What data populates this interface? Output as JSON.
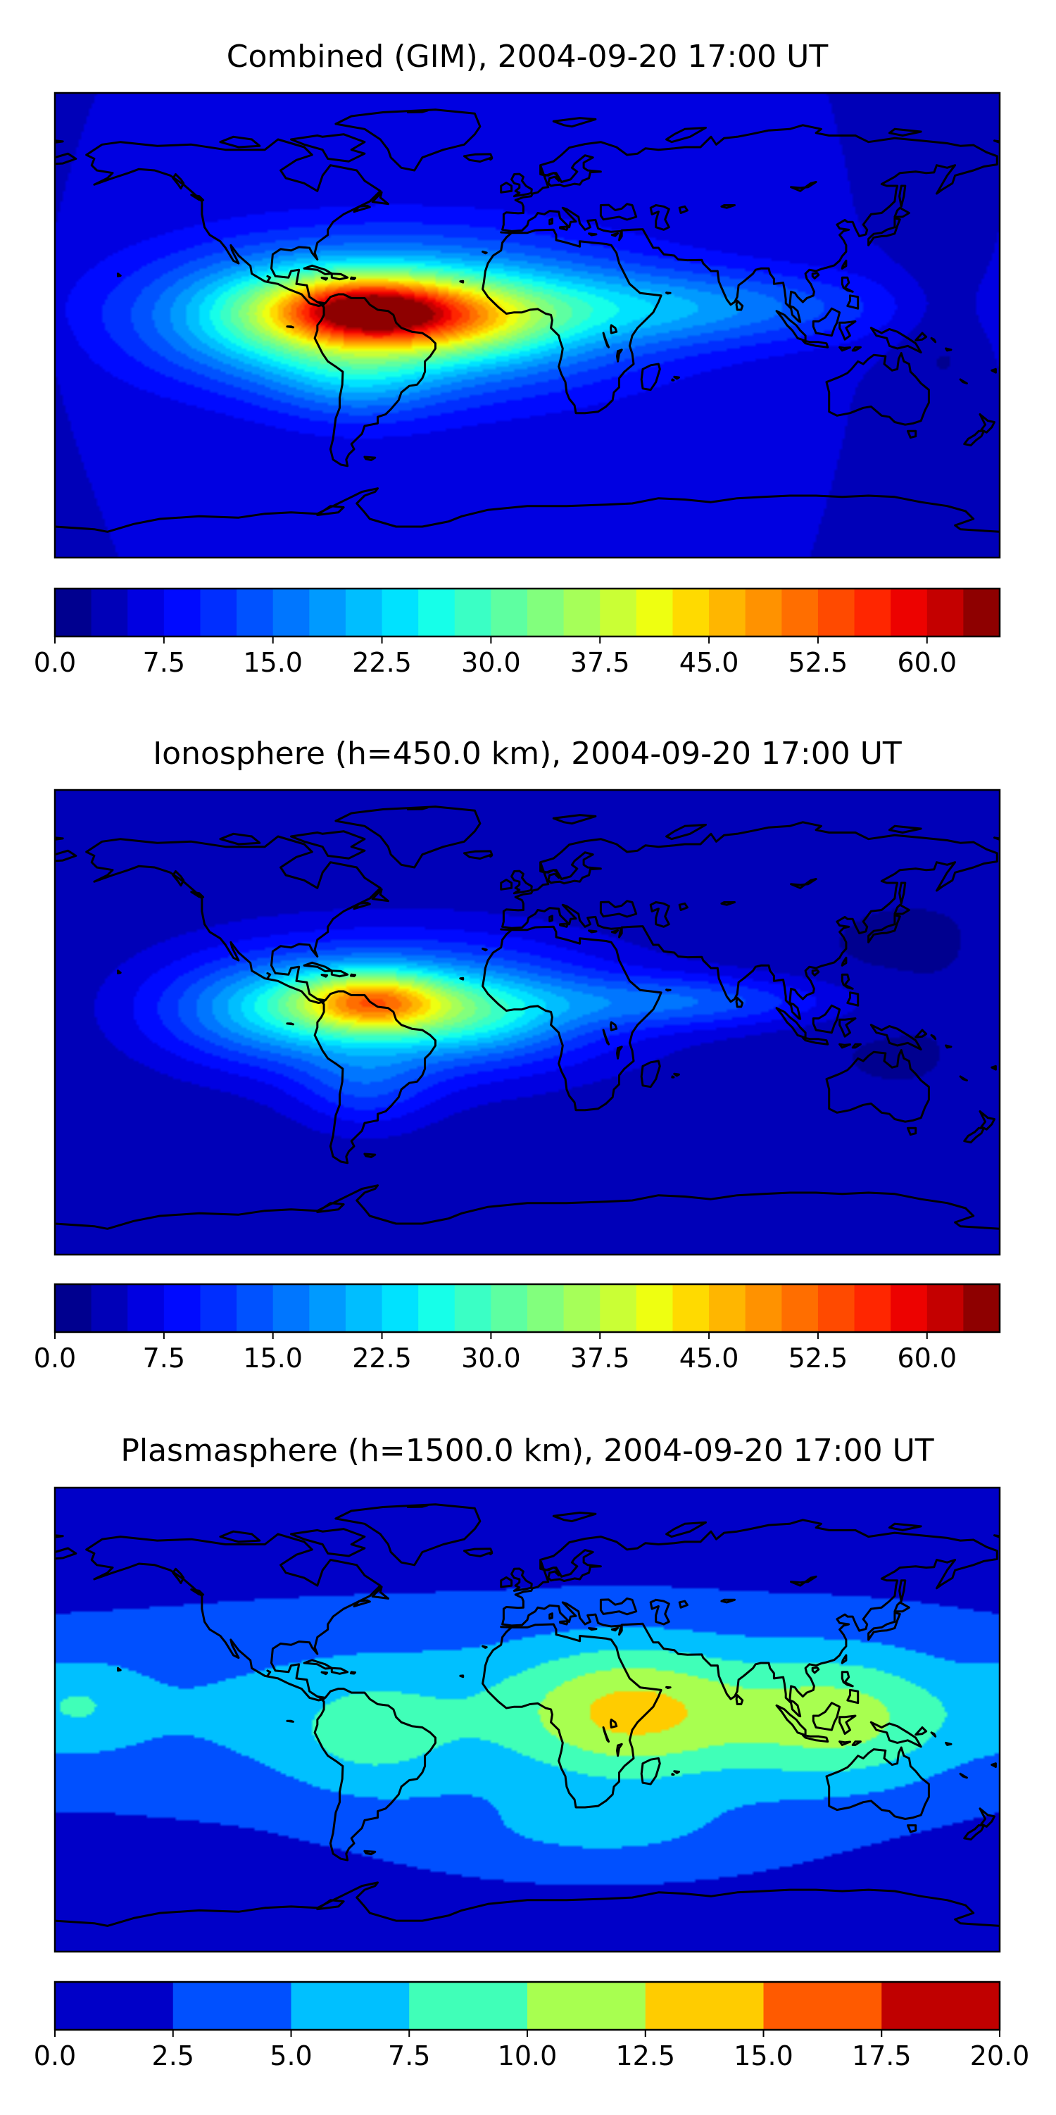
{
  "chart_data": [
    {
      "type": "heatmap",
      "title": "Combined (GIM), 2004-09-20 17:00 UT",
      "colormap": "jet",
      "colorbar": {
        "ticks": [
          "0.0",
          "7.5",
          "15.0",
          "22.5",
          "30.0",
          "37.5",
          "45.0",
          "52.5",
          "60.0"
        ],
        "vmin": 0,
        "vmax": 65,
        "step": 2.5,
        "colors": [
          "#00008f",
          "#0000b8",
          "#0000e1",
          "#000aff",
          "#002eff",
          "#0052ff",
          "#0076ff",
          "#009aff",
          "#00beff",
          "#00e2ff",
          "#16ffe9",
          "#3affc5",
          "#5effa1",
          "#82ff7d",
          "#a6ff59",
          "#caff35",
          "#eeff11",
          "#ffda00",
          "#ffb600",
          "#ff9200",
          "#ff6e00",
          "#ff4a00",
          "#ff2600",
          "#ed0200",
          "#c40000",
          "#8e0000"
        ]
      },
      "field": {
        "background": 5,
        "blobs": [
          {
            "lon": -62,
            "lat": 6,
            "sx": 24,
            "sy": 9,
            "amp": 34
          },
          {
            "lon": -48,
            "lat": 4,
            "sx": 60,
            "sy": 20,
            "amp": 24
          },
          {
            "lon": -25,
            "lat": 2,
            "sx": 26,
            "sy": 10,
            "amp": 14
          },
          {
            "lon": 60,
            "lat": 7,
            "sx": 55,
            "sy": 10,
            "amp": 11
          },
          {
            "lon": -100,
            "lat": 3,
            "sx": 28,
            "sy": 14,
            "amp": 9
          },
          {
            "lon": -65,
            "lat": -20,
            "sx": 22,
            "sy": 12,
            "amp": 8
          },
          {
            "lon": 160,
            "lat": 0,
            "sx": 15,
            "sy": 25,
            "amp": -4
          }
        ]
      }
    },
    {
      "type": "heatmap",
      "title": "Ionosphere  (h=450.0 km), 2004-09-20 17:00 UT",
      "colormap": "jet",
      "colorbar": {
        "ticks": [
          "0.0",
          "7.5",
          "15.0",
          "22.5",
          "30.0",
          "37.5",
          "45.0",
          "52.5",
          "60.0"
        ],
        "vmin": 0,
        "vmax": 65,
        "step": 2.5,
        "colors": [
          "#00008f",
          "#0000b8",
          "#0000e1",
          "#000aff",
          "#002eff",
          "#0052ff",
          "#0076ff",
          "#009aff",
          "#00beff",
          "#00e2ff",
          "#16ffe9",
          "#3affc5",
          "#5effa1",
          "#82ff7d",
          "#a6ff59",
          "#caff35",
          "#eeff11",
          "#ffda00",
          "#ffb600",
          "#ff9200",
          "#ff6e00",
          "#ff4a00",
          "#ff2600",
          "#ed0200",
          "#c40000",
          "#8e0000"
        ]
      },
      "field": {
        "background": 3,
        "blobs": [
          {
            "lon": -60,
            "lat": 8,
            "sx": 20,
            "sy": 8,
            "amp": 27
          },
          {
            "lon": -50,
            "lat": 6,
            "sx": 55,
            "sy": 18,
            "amp": 19
          },
          {
            "lon": -20,
            "lat": 3,
            "sx": 24,
            "sy": 10,
            "amp": 9
          },
          {
            "lon": 62,
            "lat": 8,
            "sx": 40,
            "sy": 7,
            "amp": 10
          },
          {
            "lon": -100,
            "lat": 5,
            "sx": 26,
            "sy": 12,
            "amp": 8
          },
          {
            "lon": -62,
            "lat": -25,
            "sx": 18,
            "sy": 12,
            "amp": 7
          },
          {
            "lon": 150,
            "lat": 10,
            "sx": 40,
            "sy": 30,
            "amp": -1
          }
        ]
      }
    },
    {
      "type": "heatmap",
      "title": "Plasmasphere (h=1500.0 km), 2004-09-20 17:00 UT",
      "colormap": "jet",
      "colorbar": {
        "ticks": [
          "0.0",
          "2.5",
          "5.0",
          "7.5",
          "10.0",
          "12.5",
          "15.0",
          "17.5",
          "20.0"
        ],
        "vmin": 0,
        "vmax": 20,
        "step": 2.5,
        "colors": [
          "#0000c8",
          "#0050ff",
          "#00c0ff",
          "#40ffb8",
          "#a8ff50",
          "#ffcc00",
          "#ff5a00",
          "#c00000"
        ]
      },
      "field": {
        "background": 1.5,
        "blobs": [
          {
            "lon": 0,
            "lat": 3,
            "sx": 160,
            "sy": 26,
            "amp": 5
          },
          {
            "lon": 40,
            "lat": 3,
            "sx": 30,
            "sy": 18,
            "amp": 7
          },
          {
            "lon": 120,
            "lat": 0,
            "sx": 30,
            "sy": 18,
            "amp": 6
          },
          {
            "lon": -60,
            "lat": -8,
            "sx": 22,
            "sy": 16,
            "amp": 3
          },
          {
            "lon": -170,
            "lat": 6,
            "sx": 16,
            "sy": 12,
            "amp": 3
          },
          {
            "lon": 28,
            "lat": -45,
            "sx": 50,
            "sy": 12,
            "amp": 3
          }
        ]
      }
    }
  ]
}
